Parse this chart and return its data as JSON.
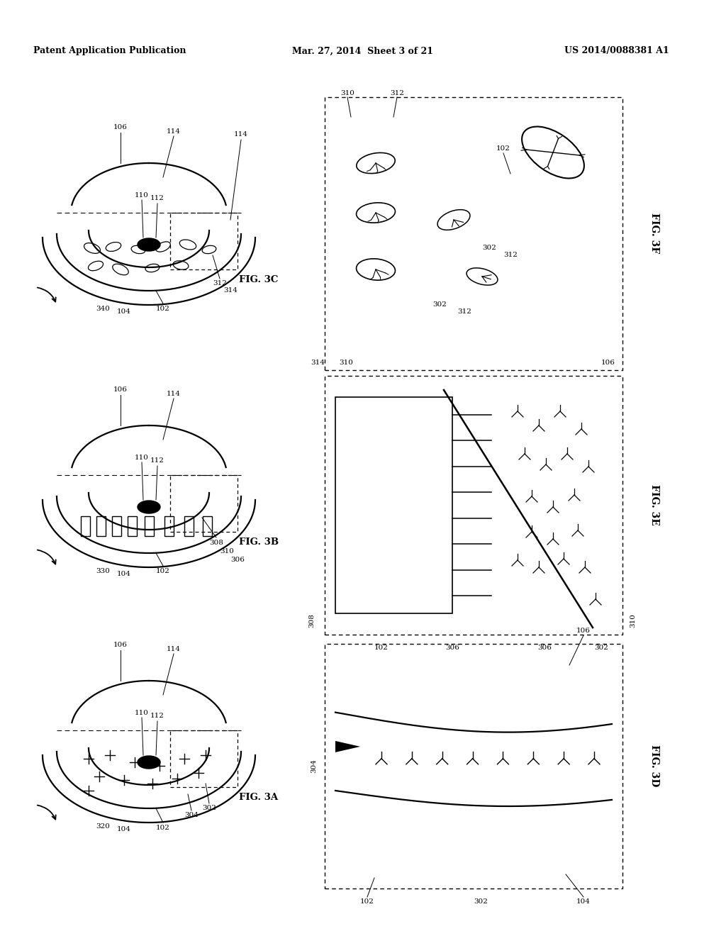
{
  "background_color": "#ffffff",
  "header_left": "Patent Application Publication",
  "header_center": "Mar. 27, 2014  Sheet 3 of 21",
  "header_right": "US 2014/0088381 A1",
  "fig3C_label": "FIG. 3C",
  "fig3B_label": "FIG. 3B",
  "fig3A_label": "FIG. 3A",
  "fig3D_label": "FIG. 3D",
  "fig3E_label": "FIG. 3E",
  "fig3F_label": "FIG. 3F"
}
